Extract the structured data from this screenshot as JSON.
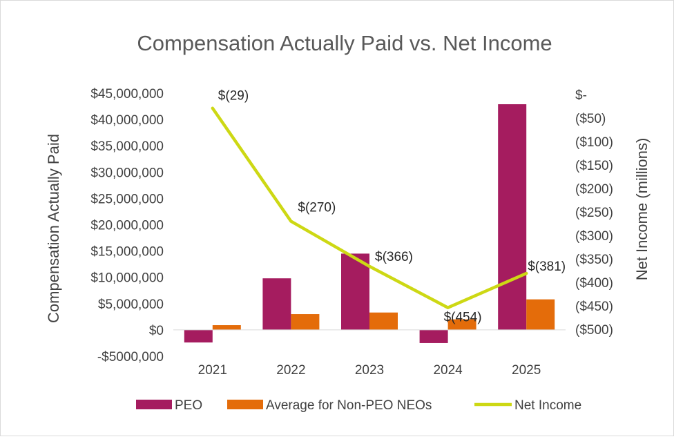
{
  "chart_data": {
    "type": "bar",
    "title": "Compensation Actually Paid vs. Net Income",
    "categories": [
      "2021",
      "2022",
      "2023",
      "2024",
      "2025"
    ],
    "series": [
      {
        "name": "PEO",
        "kind": "bar",
        "axis": "left",
        "color": "#A51C5F",
        "values": [
          -2400000,
          9800000,
          14500000,
          -2500000,
          42900000
        ]
      },
      {
        "name": "Average for Non-PEO NEOs",
        "kind": "bar",
        "axis": "left",
        "color": "#E46C0A",
        "values": [
          900000,
          3000000,
          3300000,
          2000000,
          5800000
        ]
      },
      {
        "name": "Net Income",
        "kind": "line",
        "axis": "right",
        "color": "#CDD814",
        "values": [
          -29,
          -270,
          -366,
          -454,
          -381
        ],
        "labels": [
          "$(29)",
          "$(270)",
          "$(366)",
          "$(454)",
          "$(381)"
        ]
      }
    ],
    "ylabel": "Compensation Actually Paid",
    "ylim": [
      -5000000,
      45000000
    ],
    "yticks": [
      -5000000,
      0,
      5000000,
      10000000,
      15000000,
      20000000,
      25000000,
      30000000,
      35000000,
      40000000,
      45000000
    ],
    "yticklabels": [
      "-$5000,000",
      "$0",
      "$5,000,000",
      "$10,000,000",
      "$15,000,000",
      "$20,000,000",
      "$25,000,000",
      "$30,000,000",
      "$35,000,000",
      "$40,000,000",
      "$45,000,000"
    ],
    "y2label": "Net Income (millions)",
    "y2lim": [
      -500,
      0
    ],
    "y2ticks": [
      0,
      -50,
      -100,
      -150,
      -200,
      -250,
      -300,
      -350,
      -400,
      -450,
      -500
    ],
    "y2ticklabels": [
      "$-",
      "($50)",
      "($100)",
      "($150)",
      "($200)",
      "($250)",
      "($300)",
      "($350)",
      "($400)",
      "($450)",
      "($500)"
    ],
    "legend": "bottom",
    "grid": false
  }
}
